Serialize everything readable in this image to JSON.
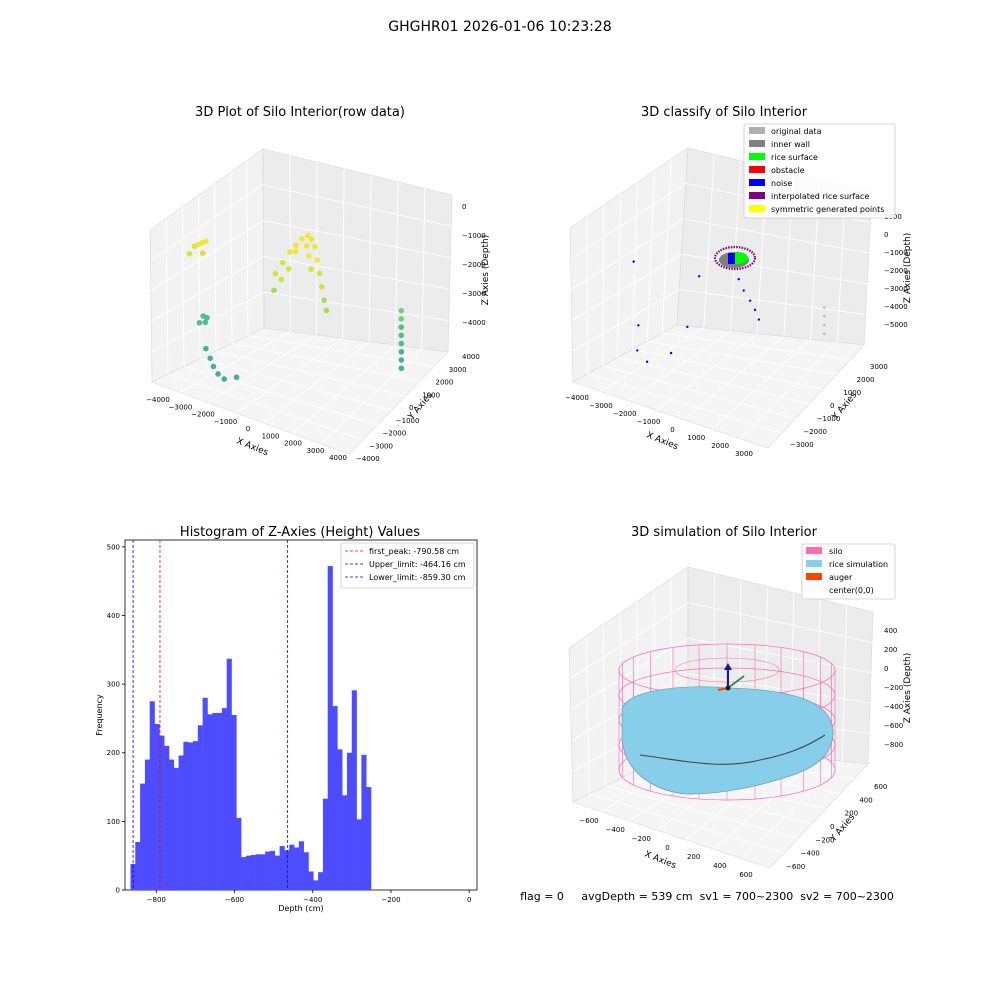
{
  "figure": {
    "suptitle": "GHGHR01 2026-01-06 10:23:28",
    "footer": "flag = 0     avgDepth = 539 cm  sv1 = 700~2300  sv2 = 700~2300"
  },
  "chart_data": [
    {
      "type": "scatter",
      "projection": "3d",
      "title": "3D Plot of Silo Interior(row data)",
      "xlabel": "X Axies",
      "ylabel": "Y Axies",
      "zlabel": "Z Axies (Depth)",
      "x_ticks": [
        "−4000",
        "−3000",
        "−2000",
        "−1000",
        "0",
        "1000",
        "2000",
        "3000",
        "4000"
      ],
      "y_ticks": [
        "−4000",
        "−3000",
        "−2000",
        "−1000",
        "0",
        "1000",
        "2000",
        "3000",
        "4000"
      ],
      "z_ticks": [
        "0",
        "−1000",
        "−2000",
        "−3000",
        "−4000"
      ],
      "xlim": [
        -4000,
        4000
      ],
      "ylim": [
        -4000,
        4000
      ],
      "zlim": [
        -4500,
        0
      ],
      "grid": true,
      "colormap": "viridis",
      "points": [
        {
          "x": -3800,
          "y": -1200,
          "z": -1000
        },
        {
          "x": -3700,
          "y": -1100,
          "z": -950
        },
        {
          "x": -3600,
          "y": -1000,
          "z": -900
        },
        {
          "x": -3500,
          "y": -900,
          "z": -850
        },
        {
          "x": -3400,
          "y": -1300,
          "z": -1100
        },
        {
          "x": -3900,
          "y": -1400,
          "z": -1200
        },
        {
          "x": -3300,
          "y": -1500,
          "z": -2900
        },
        {
          "x": -3400,
          "y": -1600,
          "z": -3100
        },
        {
          "x": -3200,
          "y": -1400,
          "z": -2950
        },
        {
          "x": -3100,
          "y": -1700,
          "z": -3000
        },
        {
          "x": -2800,
          "y": -2200,
          "z": -3600
        },
        {
          "x": -2400,
          "y": -2600,
          "z": -3700
        },
        {
          "x": -2100,
          "y": -2900,
          "z": -3800
        },
        {
          "x": -1800,
          "y": -3100,
          "z": -3900
        },
        {
          "x": -1500,
          "y": -3200,
          "z": -3950
        },
        {
          "x": -1100,
          "y": -3000,
          "z": -3850
        },
        {
          "x": -1000,
          "y": -200,
          "z": -1500
        },
        {
          "x": -800,
          "y": 0,
          "z": -1200
        },
        {
          "x": -600,
          "y": 200,
          "z": -900
        },
        {
          "x": -400,
          "y": 300,
          "z": -700
        },
        {
          "x": -200,
          "y": 400,
          "z": -500
        },
        {
          "x": 0,
          "y": 500,
          "z": -400
        },
        {
          "x": 200,
          "y": 400,
          "z": -450
        },
        {
          "x": 400,
          "y": 300,
          "z": -600
        },
        {
          "x": 600,
          "y": 100,
          "z": -900
        },
        {
          "x": 800,
          "y": -100,
          "z": -1200
        },
        {
          "x": 1000,
          "y": -300,
          "z": -1500
        },
        {
          "x": 1200,
          "y": -500,
          "z": -1800
        },
        {
          "x": 1400,
          "y": -700,
          "z": -2000
        },
        {
          "x": -300,
          "y": 100,
          "z": -800
        },
        {
          "x": 100,
          "y": 200,
          "z": -600
        },
        {
          "x": 300,
          "y": 0,
          "z": -800
        },
        {
          "x": 500,
          "y": -200,
          "z": -1100
        },
        {
          "x": -500,
          "y": -100,
          "z": -1300
        },
        {
          "x": -700,
          "y": -300,
          "z": -1600
        },
        {
          "x": -900,
          "y": -500,
          "z": -1900
        },
        {
          "x": 3200,
          "y": 1800,
          "z": -2800
        },
        {
          "x": 3250,
          "y": 1700,
          "z": -3000
        },
        {
          "x": 3300,
          "y": 1600,
          "z": -3200
        },
        {
          "x": 3350,
          "y": 1500,
          "z": -3400
        },
        {
          "x": 3400,
          "y": 1400,
          "z": -3600
        },
        {
          "x": 3450,
          "y": 1300,
          "z": -3800
        },
        {
          "x": 3500,
          "y": 1200,
          "z": -4000
        },
        {
          "x": 3150,
          "y": 1900,
          "z": -2600
        }
      ]
    },
    {
      "type": "scatter",
      "projection": "3d",
      "title": "3D classify of Silo Interior",
      "xlabel": "X Axies",
      "ylabel": "Y Axies",
      "zlabel": "Z Axies (Depth)",
      "x_ticks": [
        "−4000",
        "−3000",
        "−2000",
        "−1000",
        "0",
        "1000",
        "2000",
        "3000"
      ],
      "y_ticks": [
        "−3000",
        "−2000",
        "−1000",
        "0",
        "1000",
        "2000",
        "3000"
      ],
      "z_ticks": [
        "1000",
        "0",
        "−1000",
        "−2000",
        "−3000",
        "−4000",
        "−5000"
      ],
      "xlim": [
        -4000,
        3500
      ],
      "ylim": [
        -3500,
        3500
      ],
      "zlim": [
        -5500,
        1000
      ],
      "grid": true,
      "legend": "top-right",
      "series": [
        {
          "name": "original data",
          "color": "#b0b0b0"
        },
        {
          "name": "inner wall",
          "color": "#808080"
        },
        {
          "name": "rice surface",
          "color": "#00ff00"
        },
        {
          "name": "obstacle",
          "color": "#ff0000"
        },
        {
          "name": "noise",
          "color": "#0000ff"
        },
        {
          "name": "interpolated rice surface",
          "color": "#800080"
        },
        {
          "name": "symmetric generated points",
          "color": "#ffff00"
        }
      ]
    },
    {
      "type": "bar",
      "title": "Histogram of Z-Axies (Height) Values",
      "xlabel": "Depth (cm)",
      "ylabel": "Frequency",
      "xlim": [
        -880,
        20
      ],
      "ylim": [
        0,
        510
      ],
      "x_ticks": [
        -800,
        -600,
        -400,
        -200,
        0
      ],
      "y_ticks": [
        0,
        100,
        200,
        300,
        400,
        500
      ],
      "bar_color": "#4d4dff",
      "bin_start": -866,
      "bin_width": 12.3,
      "values": [
        38,
        70,
        155,
        190,
        275,
        242,
        225,
        210,
        190,
        178,
        196,
        216,
        215,
        217,
        240,
        280,
        256,
        258,
        258,
        265,
        337,
        255,
        105,
        48,
        50,
        51,
        52,
        52,
        56,
        57,
        50,
        64,
        58,
        66,
        62,
        71,
        55,
        27,
        14,
        26,
        133,
        472,
        268,
        205,
        138,
        200,
        291,
        103,
        197,
        150
      ],
      "legend": "top-right",
      "vlines": [
        {
          "x": -790.58,
          "label": "first_peak: -790.58 cm",
          "color": "#ff0000"
        },
        {
          "x": -464.16,
          "label": "Upper_limit: -464.16 cm",
          "color": "#0000ff"
        },
        {
          "x": -859.3,
          "label": "Lower_limit: -859.30 cm",
          "color": "#0000ff"
        }
      ]
    },
    {
      "type": "area",
      "projection": "3d",
      "title": "3D simulation of Silo Interior",
      "xlabel": "X Axies",
      "ylabel": "Y Axies",
      "zlabel": "Z Axies (Depth)",
      "x_ticks": [
        "−600",
        "−400",
        "−200",
        "0",
        "200",
        "400",
        "600"
      ],
      "y_ticks": [
        "−600",
        "−400",
        "−200",
        "0",
        "200",
        "400",
        "600"
      ],
      "z_ticks": [
        "400",
        "200",
        "0",
        "−200",
        "−400",
        "−600",
        "−800"
      ],
      "xlim": [
        -700,
        700
      ],
      "ylim": [
        -700,
        700
      ],
      "zlim": [
        -950,
        450
      ],
      "grid": true,
      "legend": "top-right",
      "series": [
        {
          "name": "silo",
          "color": "#ff69b4"
        },
        {
          "name": "rice simulation",
          "color": "#87ceeb"
        },
        {
          "name": "auger",
          "color": "#ff4500"
        },
        {
          "name": "center(0,0)",
          "color": ""
        }
      ]
    }
  ]
}
